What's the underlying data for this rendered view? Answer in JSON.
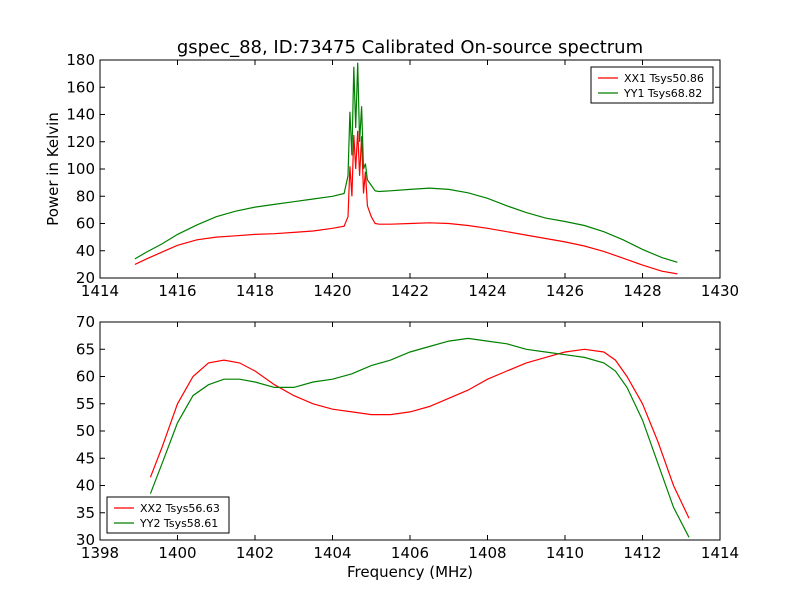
{
  "figure": {
    "title": "gspec_88, ID:73475 Calibrated On-source spectrum",
    "xlabel": "Frequency (MHz)"
  },
  "chart_data": [
    {
      "type": "line",
      "title": "gspec_88, ID:73475 Calibrated On-source spectrum",
      "xlabel": "",
      "ylabel": "Power in Kelvin",
      "xlim": [
        1414,
        1430
      ],
      "ylim": [
        20,
        180
      ],
      "xticks": [
        1414,
        1416,
        1418,
        1420,
        1422,
        1424,
        1426,
        1428,
        1430
      ],
      "yticks": [
        20,
        40,
        60,
        80,
        100,
        120,
        140,
        160,
        180
      ],
      "legend_position": "top-right",
      "grid": false,
      "series": [
        {
          "name": "XX1 Tsys50.86",
          "color": "#ff0000",
          "x": [
            1414.9,
            1415.2,
            1415.6,
            1416.0,
            1416.5,
            1417.0,
            1417.5,
            1418.0,
            1418.5,
            1419.0,
            1419.5,
            1420.0,
            1420.3,
            1420.4,
            1420.45,
            1420.5,
            1420.55,
            1420.6,
            1420.65,
            1420.7,
            1420.75,
            1420.8,
            1420.85,
            1420.9,
            1421.0,
            1421.1,
            1421.2,
            1421.5,
            1422.0,
            1422.5,
            1423.0,
            1423.5,
            1424.0,
            1424.5,
            1425.0,
            1425.5,
            1426.0,
            1426.5,
            1427.0,
            1427.5,
            1428.0,
            1428.5,
            1428.9
          ],
          "y": [
            30,
            34,
            39,
            44,
            48,
            50,
            51,
            52,
            52.5,
            53.5,
            54.5,
            56.5,
            58,
            65,
            102,
            80,
            125,
            100,
            128,
            95,
            124,
            82,
            98,
            73,
            65,
            60,
            59.5,
            59.5,
            60,
            60.5,
            60,
            58.5,
            56.5,
            54,
            51.5,
            49,
            46.5,
            43.5,
            39.5,
            34.5,
            29.5,
            25,
            23
          ]
        },
        {
          "name": "YY1 Tsys68.82",
          "color": "#008000",
          "x": [
            1414.9,
            1415.2,
            1415.6,
            1416.0,
            1416.5,
            1417.0,
            1417.5,
            1418.0,
            1418.5,
            1419.0,
            1419.5,
            1420.0,
            1420.3,
            1420.4,
            1420.45,
            1420.5,
            1420.55,
            1420.6,
            1420.65,
            1420.7,
            1420.75,
            1420.8,
            1420.85,
            1420.9,
            1421.0,
            1421.1,
            1421.2,
            1421.5,
            1422.0,
            1422.5,
            1423.0,
            1423.5,
            1424.0,
            1424.5,
            1425.0,
            1425.5,
            1426.0,
            1426.5,
            1427.0,
            1427.5,
            1428.0,
            1428.5,
            1428.9
          ],
          "y": [
            34,
            39,
            45,
            52,
            59,
            65,
            69,
            72,
            74,
            76,
            78,
            80,
            82,
            95,
            142,
            110,
            175,
            130,
            178,
            120,
            146,
            100,
            104,
            92,
            88,
            84,
            83.5,
            84,
            85,
            86,
            85,
            82.5,
            78.5,
            73,
            68,
            64,
            61.5,
            58.5,
            54,
            48,
            41,
            35,
            31.5
          ]
        }
      ]
    },
    {
      "type": "line",
      "title": "",
      "xlabel": "Frequency (MHz)",
      "ylabel": "",
      "xlim": [
        1398,
        1414
      ],
      "ylim": [
        30,
        70
      ],
      "xticks": [
        1398,
        1400,
        1402,
        1404,
        1406,
        1408,
        1410,
        1412,
        1414
      ],
      "yticks": [
        30,
        35,
        40,
        45,
        50,
        55,
        60,
        65,
        70
      ],
      "legend_position": "bottom-left",
      "grid": false,
      "series": [
        {
          "name": "XX2 Tsys56.63",
          "color": "#ff0000",
          "x": [
            1399.3,
            1399.6,
            1400.0,
            1400.4,
            1400.8,
            1401.2,
            1401.6,
            1402.0,
            1402.5,
            1403.0,
            1403.5,
            1404.0,
            1404.5,
            1405.0,
            1405.5,
            1406.0,
            1406.5,
            1407.0,
            1407.5,
            1408.0,
            1408.5,
            1409.0,
            1409.5,
            1410.0,
            1410.5,
            1411.0,
            1411.3,
            1411.6,
            1412.0,
            1412.4,
            1412.8,
            1413.2
          ],
          "y": [
            41.5,
            47,
            55,
            60,
            62.5,
            63,
            62.5,
            61,
            58.5,
            56.5,
            55,
            54,
            53.5,
            53,
            53,
            53.5,
            54.5,
            56,
            57.5,
            59.5,
            61,
            62.5,
            63.5,
            64.5,
            65,
            64.5,
            63,
            60,
            55,
            48,
            40,
            34
          ]
        },
        {
          "name": "YY2 Tsys58.61",
          "color": "#008000",
          "x": [
            1399.3,
            1399.6,
            1400.0,
            1400.4,
            1400.8,
            1401.2,
            1401.6,
            1402.0,
            1402.5,
            1403.0,
            1403.5,
            1404.0,
            1404.5,
            1405.0,
            1405.5,
            1406.0,
            1406.5,
            1407.0,
            1407.5,
            1408.0,
            1408.5,
            1409.0,
            1409.5,
            1410.0,
            1410.5,
            1411.0,
            1411.3,
            1411.6,
            1412.0,
            1412.4,
            1412.8,
            1413.2
          ],
          "y": [
            38.5,
            44,
            51.5,
            56.5,
            58.5,
            59.5,
            59.5,
            59,
            58,
            58,
            59,
            59.5,
            60.5,
            62,
            63,
            64.5,
            65.5,
            66.5,
            67,
            66.5,
            66,
            65,
            64.5,
            64,
            63.5,
            62.5,
            61,
            58,
            52,
            44,
            36,
            30.5
          ]
        }
      ]
    }
  ]
}
